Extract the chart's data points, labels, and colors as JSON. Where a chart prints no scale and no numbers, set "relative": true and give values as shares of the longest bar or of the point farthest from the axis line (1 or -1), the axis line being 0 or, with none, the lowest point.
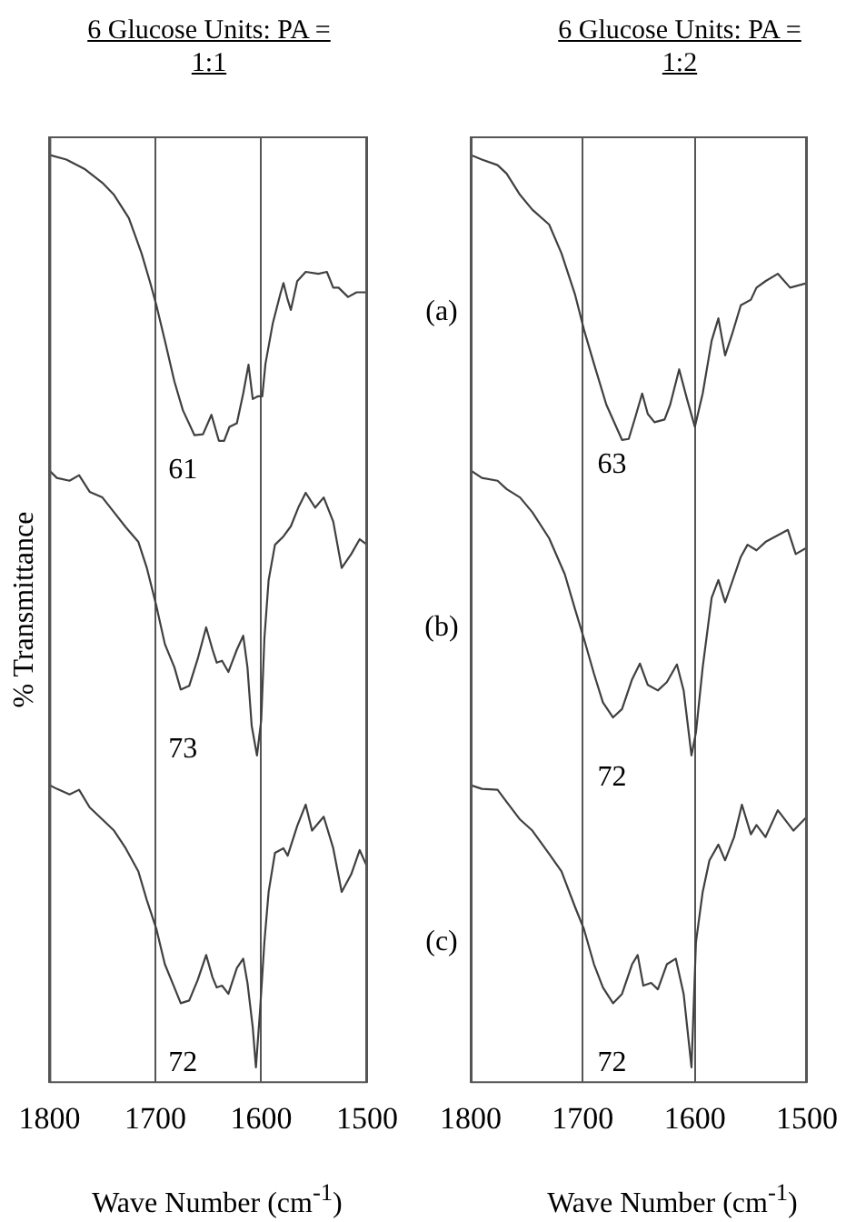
{
  "chart_data": [
    {
      "type": "line",
      "title": "6 Glucose Units: PA = 1:1",
      "xlabel": "Wave Number (cm$^{-1}$)",
      "ylabel": "% Transmittance",
      "relative": true,
      "grid": "x",
      "xlim": [
        1800,
        1500
      ],
      "xticks": [
        1800,
        1700,
        1600,
        1500
      ],
      "series": [
        {
          "color": "#404040",
          "x": [
            1800,
            1784,
            1767,
            1750,
            1739,
            1725,
            1713,
            1705,
            1699,
            1691,
            1682,
            1674,
            1663,
            1655,
            1647,
            1640,
            1635,
            1630,
            1623,
            1617,
            1612,
            1608,
            1603,
            1599,
            1596,
            1589,
            1582,
            1579,
            1575,
            1572,
            1566,
            1558,
            1546,
            1538,
            1532,
            1527,
            1518,
            1510,
            1500
          ],
          "values": [
            1,
            0.995,
            0.985,
            0.97,
            0.957,
            0.932,
            0.894,
            0.863,
            0.838,
            0.8,
            0.756,
            0.725,
            0.698,
            0.699,
            0.72,
            0.692,
            0.692,
            0.707,
            0.711,
            0.743,
            0.774,
            0.737,
            0.74,
            0.74,
            0.775,
            0.819,
            0.85,
            0.862,
            0.844,
            0.833,
            0.864,
            0.874,
            0.872,
            0.874,
            0.857,
            0.857,
            0.847,
            0.852,
            0.852
          ]
        },
        {
          "color": "#404040",
          "x": [
            1800,
            1793,
            1781,
            1772,
            1762,
            1750,
            1739,
            1728,
            1716,
            1708,
            1699,
            1691,
            1682,
            1676,
            1668,
            1660,
            1652,
            1646,
            1642,
            1637,
            1631,
            1623,
            1617,
            1613,
            1609,
            1604,
            1600,
            1597,
            1593,
            1587,
            1579,
            1572,
            1565,
            1558,
            1549,
            1541,
            1532,
            1524,
            1515,
            1507,
            1500
          ],
          "values": [
            0.66,
            0.652,
            0.649,
            0.655,
            0.637,
            0.631,
            0.615,
            0.599,
            0.583,
            0.555,
            0.514,
            0.473,
            0.448,
            0.424,
            0.428,
            0.457,
            0.491,
            0.467,
            0.453,
            0.455,
            0.443,
            0.467,
            0.482,
            0.448,
            0.385,
            0.353,
            0.391,
            0.479,
            0.542,
            0.58,
            0.589,
            0.6,
            0.62,
            0.636,
            0.62,
            0.631,
            0.605,
            0.555,
            0.57,
            0.586,
            0.58
          ]
        },
        {
          "color": "#404040",
          "x": [
            1800,
            1793,
            1781,
            1772,
            1762,
            1750,
            1739,
            1728,
            1716,
            1708,
            1699,
            1691,
            1682,
            1676,
            1668,
            1660,
            1652,
            1646,
            1642,
            1637,
            1631,
            1623,
            1617,
            1613,
            1608,
            1605,
            1601,
            1597,
            1593,
            1587,
            1579,
            1575,
            1566,
            1558,
            1552,
            1541,
            1532,
            1524,
            1515,
            1507,
            1500
          ],
          "values": [
            0.321,
            0.317,
            0.311,
            0.316,
            0.297,
            0.284,
            0.272,
            0.253,
            0.228,
            0.197,
            0.166,
            0.128,
            0.103,
            0.086,
            0.089,
            0.111,
            0.138,
            0.114,
            0.103,
            0.105,
            0.096,
            0.124,
            0.134,
            0.108,
            0.06,
            0.017,
            0.08,
            0.152,
            0.206,
            0.248,
            0.253,
            0.245,
            0.277,
            0.3,
            0.272,
            0.287,
            0.253,
            0.206,
            0.225,
            0.251,
            0.233
          ]
        }
      ],
      "annotations": [
        "61",
        "73",
        "72"
      ]
    },
    {
      "type": "line",
      "title": "6 Glucose Units: PA = 1:2",
      "xlabel": "Wave Number (cm$^{-1}$)",
      "relative": true,
      "grid": "x",
      "xlim": [
        1800,
        1500
      ],
      "xticks": [
        1800,
        1700,
        1600,
        1500
      ],
      "series": [
        {
          "color": "#404040",
          "x": [
            1800,
            1790,
            1776,
            1768,
            1756,
            1745,
            1730,
            1719,
            1707,
            1699,
            1690,
            1679,
            1665,
            1659,
            1653,
            1647,
            1642,
            1636,
            1627,
            1622,
            1614,
            1607,
            1600,
            1593,
            1585,
            1579,
            1573,
            1567,
            1559,
            1550,
            1545,
            1537,
            1526,
            1515,
            1500
          ],
          "values": [
            1,
            0.995,
            0.989,
            0.98,
            0.957,
            0.941,
            0.925,
            0.894,
            0.85,
            0.812,
            0.775,
            0.731,
            0.693,
            0.694,
            0.718,
            0.743,
            0.721,
            0.712,
            0.715,
            0.731,
            0.769,
            0.737,
            0.707,
            0.743,
            0.8,
            0.824,
            0.784,
            0.806,
            0.838,
            0.844,
            0.857,
            0.864,
            0.872,
            0.857,
            0.862
          ]
        },
        {
          "color": "#404040",
          "x": [
            1800,
            1790,
            1776,
            1768,
            1756,
            1745,
            1730,
            1716,
            1707,
            1699,
            1690,
            1682,
            1673,
            1665,
            1656,
            1649,
            1642,
            1633,
            1625,
            1616,
            1610,
            1603,
            1599,
            1593,
            1585,
            1579,
            1573,
            1567,
            1559,
            1553,
            1545,
            1537,
            1517,
            1510,
            1500
          ],
          "values": [
            0.66,
            0.652,
            0.649,
            0.64,
            0.631,
            0.615,
            0.587,
            0.548,
            0.511,
            0.479,
            0.441,
            0.41,
            0.394,
            0.403,
            0.435,
            0.452,
            0.429,
            0.423,
            0.432,
            0.451,
            0.423,
            0.353,
            0.378,
            0.448,
            0.523,
            0.542,
            0.518,
            0.539,
            0.567,
            0.58,
            0.574,
            0.583,
            0.596,
            0.57,
            0.577
          ]
        },
        {
          "color": "#404040",
          "x": [
            1800,
            1790,
            1776,
            1768,
            1756,
            1745,
            1730,
            1719,
            1707,
            1699,
            1690,
            1682,
            1673,
            1665,
            1656,
            1651,
            1646,
            1639,
            1633,
            1625,
            1617,
            1610,
            1603,
            1599,
            1593,
            1587,
            1579,
            1573,
            1565,
            1558,
            1550,
            1545,
            1537,
            1526,
            1512,
            1500
          ],
          "values": [
            0.321,
            0.317,
            0.316,
            0.303,
            0.284,
            0.272,
            0.247,
            0.228,
            0.19,
            0.166,
            0.128,
            0.103,
            0.086,
            0.096,
            0.128,
            0.138,
            0.105,
            0.108,
            0.101,
            0.128,
            0.134,
            0.096,
            0.017,
            0.152,
            0.206,
            0.24,
            0.257,
            0.24,
            0.265,
            0.3,
            0.268,
            0.278,
            0.265,
            0.294,
            0.272,
            0.287
          ]
        }
      ],
      "annotations": [
        "(a)",
        "(b)",
        "(c)",
        "63",
        "72",
        "72"
      ]
    }
  ]
}
